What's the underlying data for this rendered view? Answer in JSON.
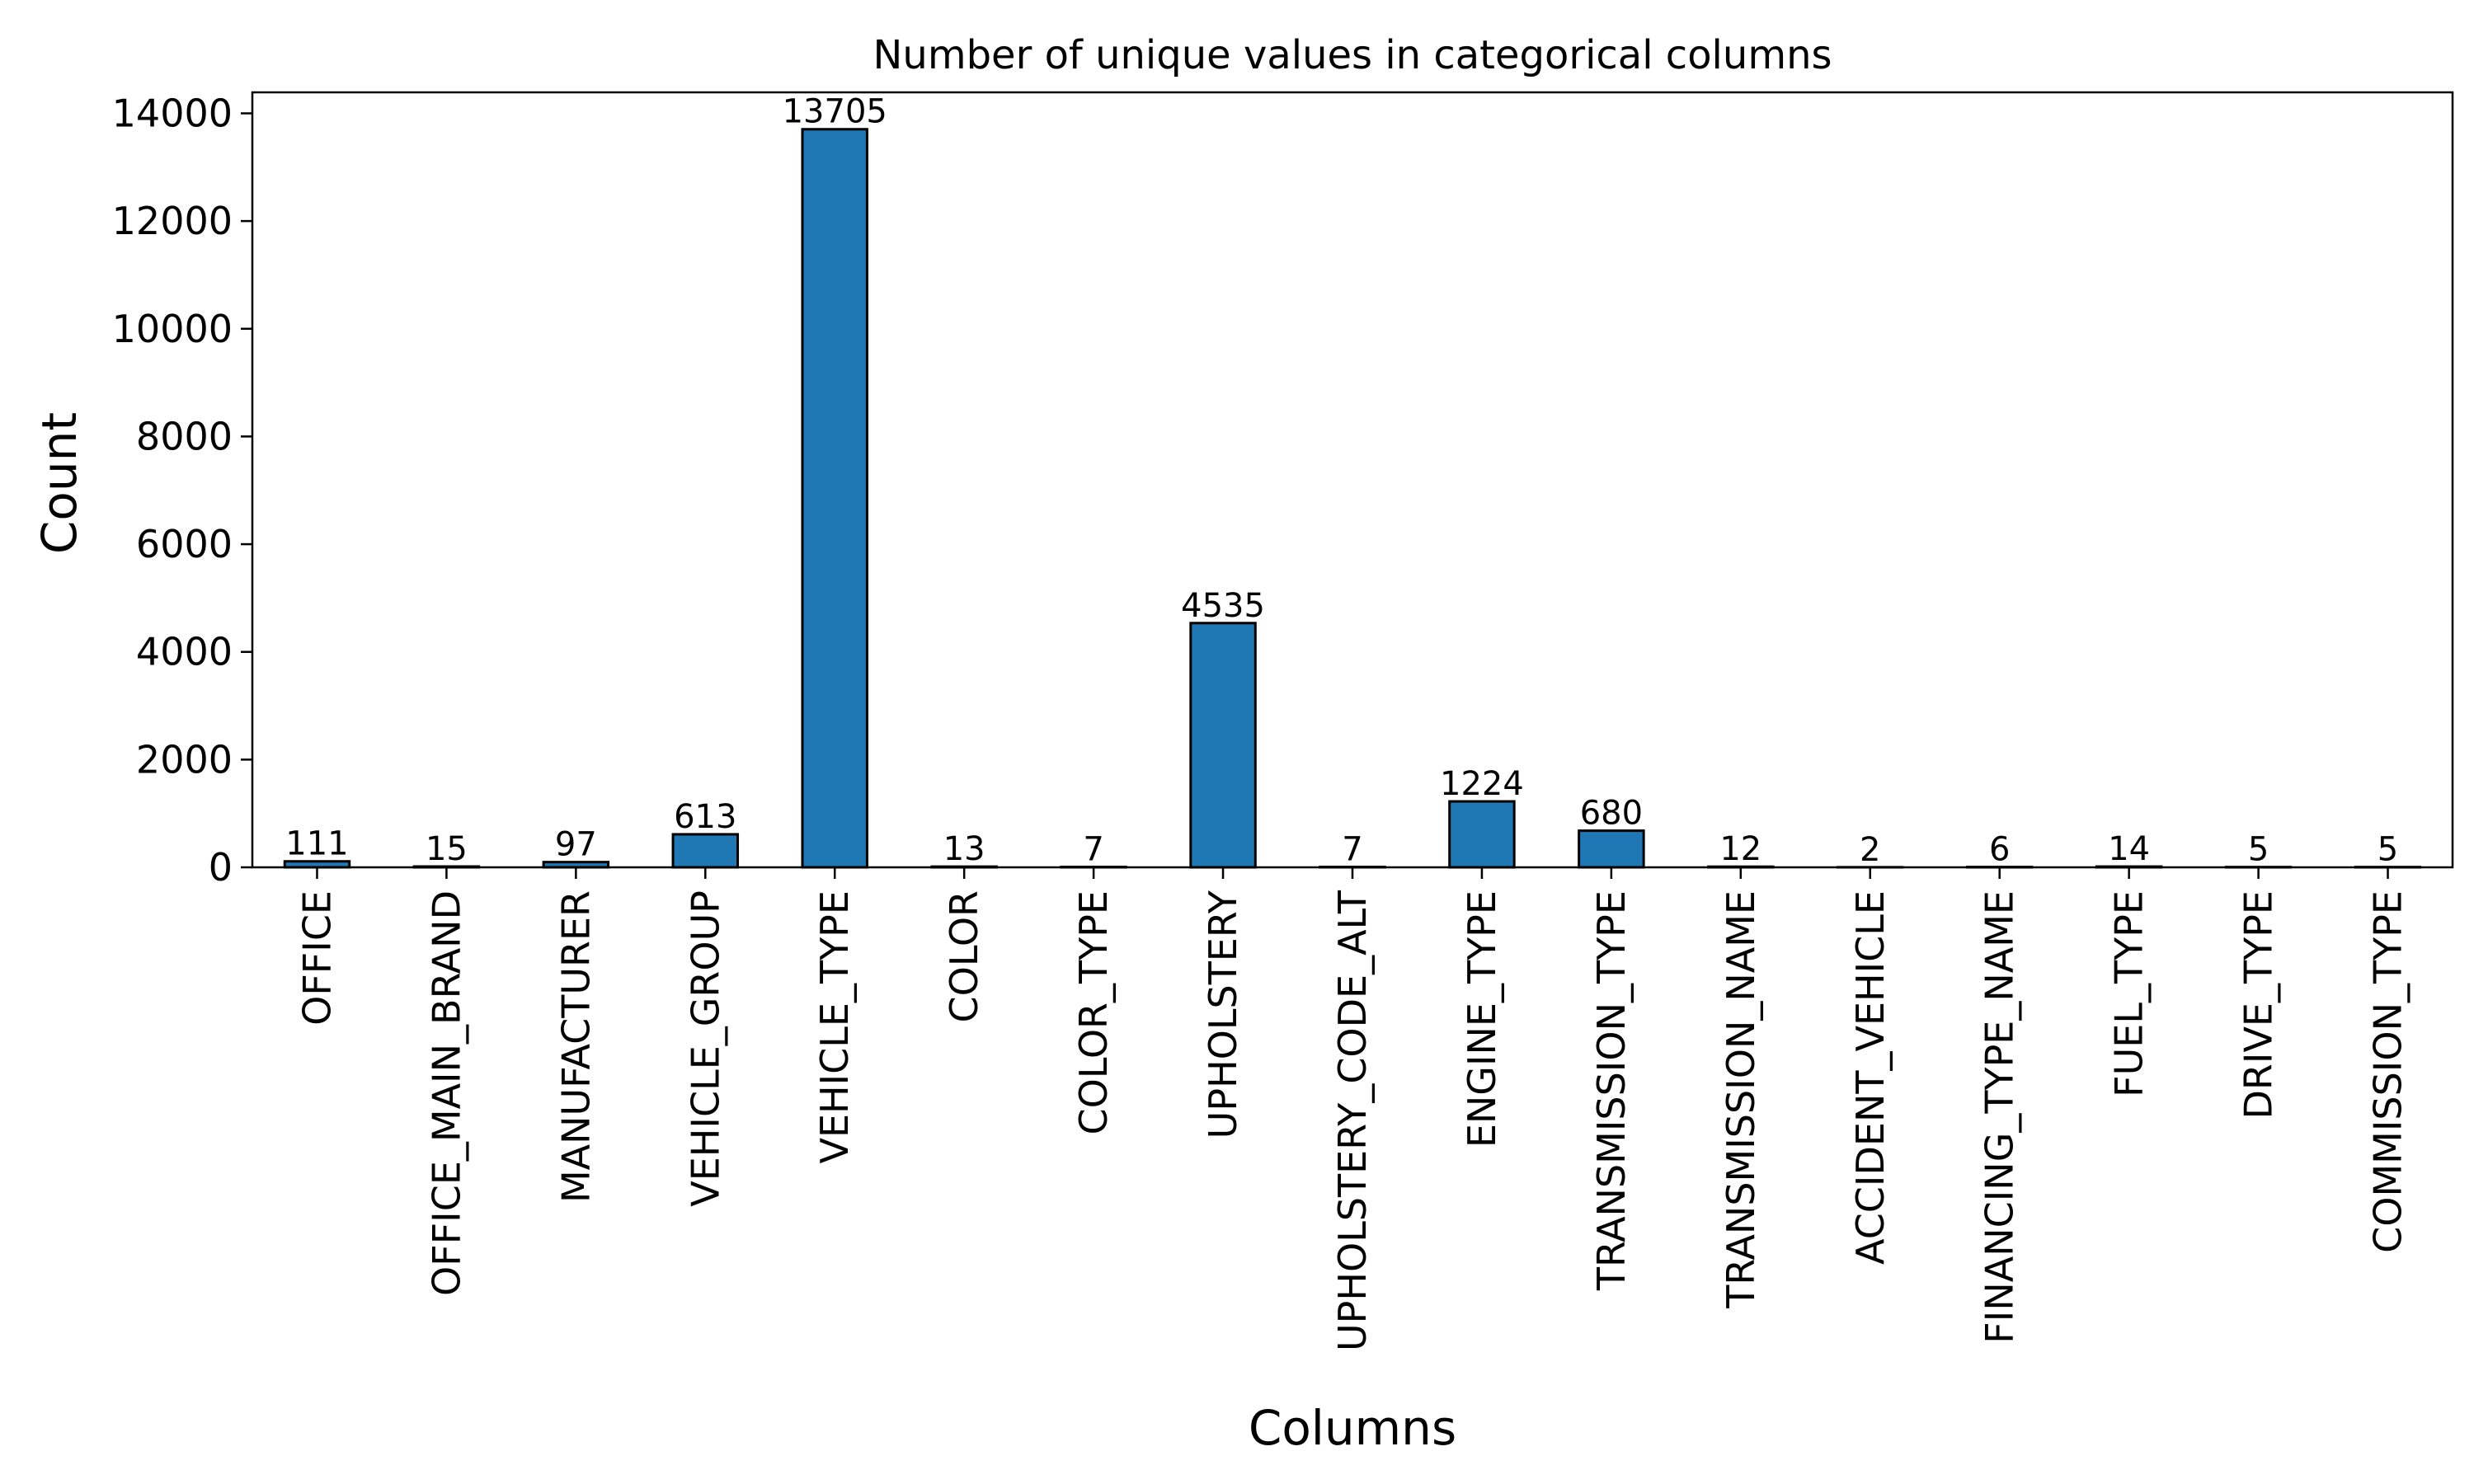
{
  "chart_data": {
    "type": "bar",
    "title": "Number of unique values in categorical columns",
    "xlabel": "Columns",
    "ylabel": "Count",
    "categories": [
      "OFFICE",
      "OFFICE_MAIN_BRAND",
      "MANUFACTURER",
      "VEHICLE_GROUP",
      "VEHICLE_TYPE",
      "COLOR",
      "COLOR_TYPE",
      "UPHOLSTERY",
      "UPHOLSTERY_CODE_ALT",
      "ENGINE_TYPE",
      "TRANSMISSION_TYPE",
      "TRANSMISSION_NAME",
      "ACCIDENT_VEHICLE",
      "FINANCING_TYPE_NAME",
      "FUEL_TYPE",
      "DRIVE_TYPE",
      "COMMISSION_TYPE"
    ],
    "values": [
      111,
      15,
      97,
      613,
      13705,
      13,
      7,
      4535,
      7,
      1224,
      680,
      12,
      2,
      6,
      14,
      5,
      5
    ],
    "data_labels": [
      "111",
      "15",
      "97",
      "613",
      "13705",
      "13",
      "7",
      "4535",
      "7",
      "1224",
      "680",
      "12",
      "2",
      "6",
      "14",
      "5",
      "5"
    ],
    "ylim": [
      0,
      14390
    ],
    "yticks": [
      0,
      2000,
      4000,
      6000,
      8000,
      10000,
      12000,
      14000
    ],
    "ytick_labels": [
      "0",
      "2000",
      "4000",
      "6000",
      "8000",
      "10000",
      "12000",
      "14000"
    ],
    "grid": false,
    "legend": "none",
    "bar_color": "#1f77b4",
    "edge_color": "#000000"
  }
}
